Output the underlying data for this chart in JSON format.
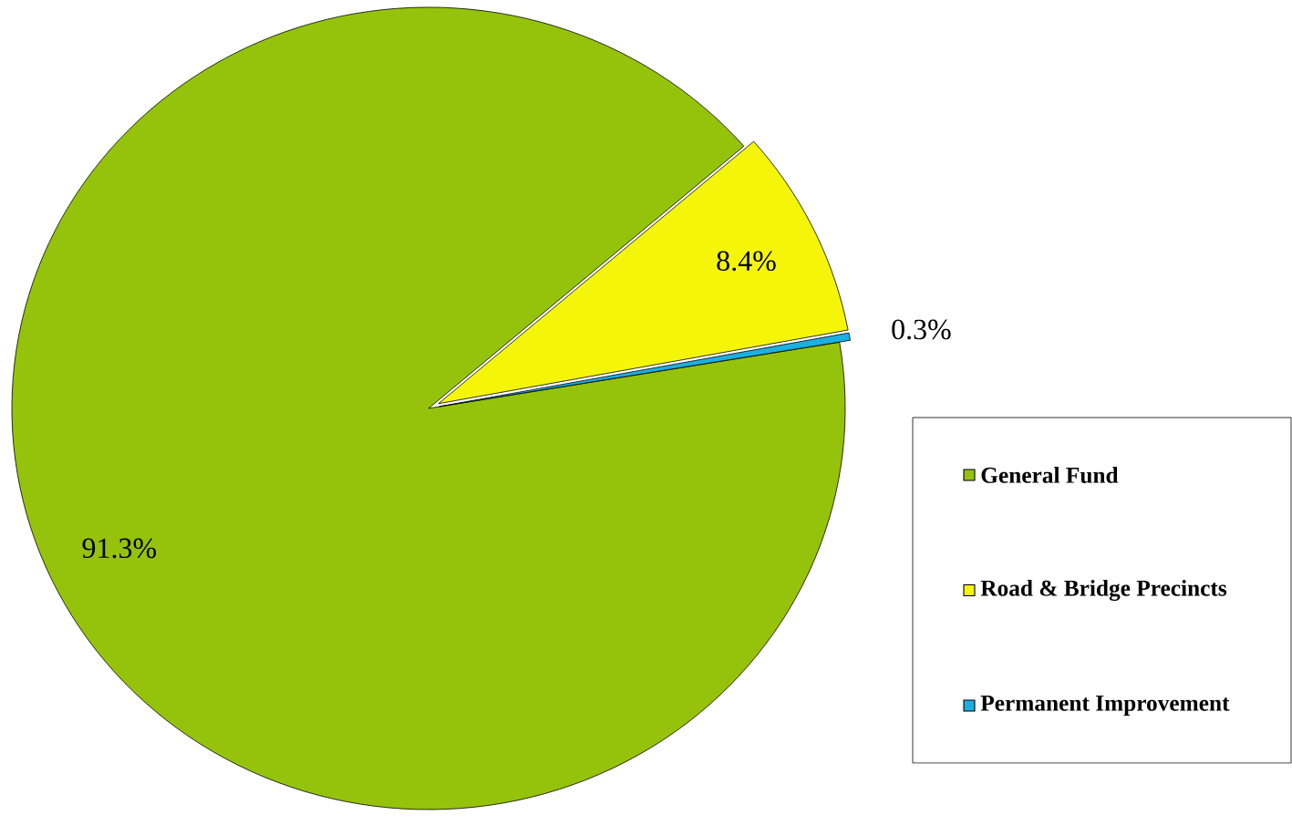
{
  "chart_data": {
    "type": "pie",
    "categories": [
      "General Fund",
      "Road & Bridge Precincts",
      "Permanent Improvement"
    ],
    "values": [
      91.3,
      8.4,
      0.3
    ],
    "colors": [
      "#95c30b",
      "#f5f50a",
      "#1ab0e0"
    ],
    "value_labels": [
      "91.3%",
      "8.4%",
      "0.3%"
    ],
    "legend": "right"
  }
}
